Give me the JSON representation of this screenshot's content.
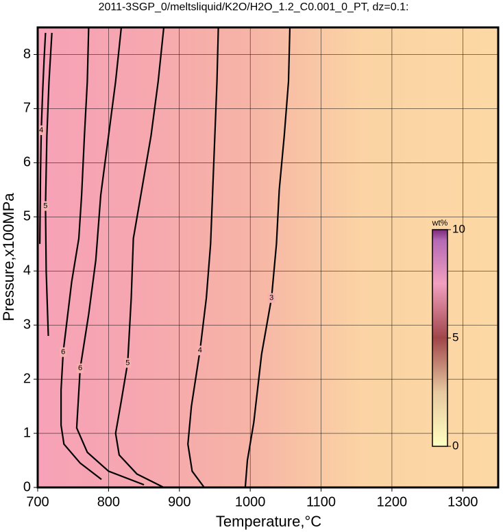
{
  "chart_data": {
    "type": "contour",
    "title": "2011-3SGP_0/meltsliquid/K2O/H2O_1.2_C0.001_0_PT, dz=0.1:",
    "x_label": "Temperature,°C",
    "y_label": "Pressure,x100MPa",
    "xlim": [
      700,
      1350
    ],
    "ylim": [
      0,
      8.5
    ],
    "xticks": [
      700,
      800,
      900,
      1000,
      1100,
      1200,
      1300
    ],
    "yticks": [
      0,
      1,
      2,
      3,
      4,
      5,
      6,
      7,
      8
    ],
    "grid": true,
    "contours": [
      {
        "level": 3,
        "x": [
          993,
          996,
          1005,
          1016,
          1030,
          1037,
          1041,
          1048,
          1054,
          1056
        ],
        "y": [
          0,
          0.5,
          1.2,
          2.46,
          3.5,
          4.5,
          5.5,
          6.5,
          7.5,
          8.5
        ]
      },
      {
        "level": 4,
        "x": [
          935,
          918,
          912,
          917,
          929,
          938,
          944,
          947,
          950,
          953,
          955
        ],
        "y": [
          0,
          0.3,
          0.8,
          1.5,
          2.53,
          3.5,
          4.5,
          5.5,
          6.5,
          7.5,
          8.5
        ]
      },
      {
        "level": 5,
        "x": [
          878,
          840,
          815,
          810,
          818,
          827,
          832,
          835,
          846,
          860,
          870,
          878
        ],
        "y": [
          0,
          0.25,
          0.6,
          1.0,
          1.6,
          2.3,
          3.5,
          4.6,
          5.43,
          6.5,
          7.5,
          8.5
        ]
      },
      {
        "level": 6,
        "x": [
          790,
          760,
          737,
          733,
          733,
          736,
          748,
          758,
          762,
          766,
          770,
          772
        ],
        "y": [
          0.15,
          0.45,
          0.8,
          1.15,
          1.8,
          2.5,
          3.8,
          4.6,
          5.4,
          6.5,
          7.5,
          8.5
        ]
      },
      {
        "level": 6,
        "x": [
          850,
          800,
          770,
          755,
          760,
          772,
          782,
          789,
          800,
          810,
          818
        ],
        "y": [
          0.05,
          0.3,
          0.65,
          1.1,
          2.2,
          3.2,
          4.2,
          5.4,
          6.5,
          7.5,
          8.5
        ]
      },
      {
        "level": 5,
        "x": [
          715,
          712,
          711,
          713,
          716,
          720
        ],
        "y": [
          2.8,
          4.0,
          5.2,
          6.5,
          7.5,
          8.4
        ]
      },
      {
        "level": 4,
        "x": [
          703,
          704,
          705,
          707,
          709,
          711
        ],
        "y": [
          4.5,
          5.8,
          6.6,
          7.3,
          7.9,
          8.4
        ]
      }
    ],
    "colorbar": {
      "label": "wt%",
      "lim": [
        0,
        10
      ],
      "ticks": [
        0,
        5,
        10
      ]
    }
  }
}
